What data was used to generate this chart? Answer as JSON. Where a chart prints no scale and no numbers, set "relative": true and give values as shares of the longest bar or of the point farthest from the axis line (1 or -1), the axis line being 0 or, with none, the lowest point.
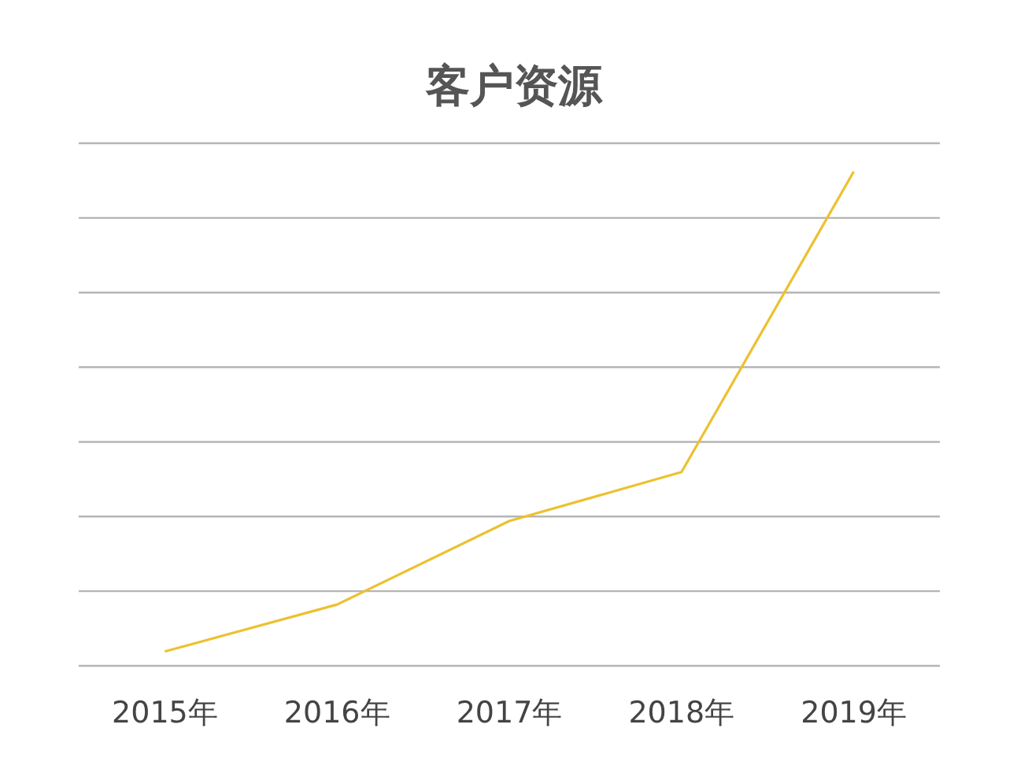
{
  "chart_data": {
    "type": "line",
    "title": "客户资源",
    "categories": [
      "2015年",
      "2016年",
      "2017年",
      "2018年",
      "2019年"
    ],
    "series": [
      {
        "color": "#ecc131",
        "values": [
          0.029,
          0.124,
          0.293,
          0.392,
          1
        ]
      }
    ],
    "relative": true,
    "grid": "y",
    "marker": "none",
    "line_style": "solid"
  }
}
